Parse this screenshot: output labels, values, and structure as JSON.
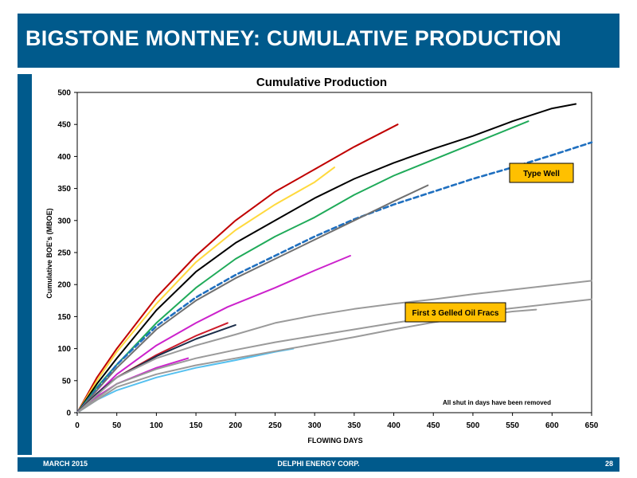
{
  "slide": {
    "title": "BIGSTONE MONTNEY:  CUMULATIVE PRODUCTION",
    "footer_left": "MARCH 2015",
    "footer_center": "DELPHI ENERGY CORP.",
    "page_number": "28",
    "accent_color": "#005a8c"
  },
  "chart_data": {
    "type": "line",
    "title": "Cumulative Production",
    "xlabel": "FLOWING DAYS",
    "ylabel": "Cumulative BOE's (MBOE)",
    "xlim": [
      0,
      650
    ],
    "ylim": [
      0,
      500
    ],
    "xticks": [
      0,
      50,
      100,
      150,
      200,
      250,
      300,
      350,
      400,
      450,
      500,
      550,
      600,
      650
    ],
    "yticks": [
      0,
      50,
      100,
      150,
      200,
      250,
      300,
      350,
      400,
      450,
      500
    ],
    "grid": false,
    "legend": "none",
    "annotations": {
      "type_well_label": "Type Well",
      "gelled_label": "First 3 Gelled Oil Fracs",
      "note": "All shut in days have been removed",
      "callout_fill": "#ffc000"
    },
    "series": [
      {
        "color": "#c00000",
        "dashed": false,
        "x": [
          0,
          25,
          50,
          100,
          150,
          200,
          250,
          300,
          350,
          405
        ],
        "y": [
          0,
          55,
          100,
          180,
          245,
          300,
          345,
          380,
          415,
          450
        ]
      },
      {
        "color": "#ffd93d",
        "dashed": false,
        "x": [
          0,
          25,
          50,
          100,
          150,
          200,
          250,
          300,
          325
        ],
        "y": [
          0,
          50,
          95,
          170,
          235,
          285,
          325,
          360,
          383
        ]
      },
      {
        "color": "#000000",
        "dashed": false,
        "x": [
          0,
          25,
          50,
          100,
          150,
          200,
          250,
          300,
          350,
          400,
          450,
          500,
          550,
          600,
          630
        ],
        "y": [
          0,
          45,
          85,
          160,
          220,
          265,
          300,
          335,
          365,
          390,
          412,
          432,
          455,
          475,
          482
        ]
      },
      {
        "color": "#1faa59",
        "dashed": false,
        "x": [
          0,
          25,
          50,
          100,
          150,
          200,
          250,
          300,
          350,
          400,
          450,
          500,
          550,
          570
        ],
        "y": [
          0,
          40,
          75,
          140,
          195,
          240,
          275,
          305,
          340,
          370,
          395,
          420,
          445,
          455
        ]
      },
      {
        "color": "#1f6fbf",
        "dashed": true,
        "x": [
          0,
          50,
          100,
          150,
          200,
          250,
          300,
          350,
          400,
          450,
          500,
          550,
          600,
          650
        ],
        "y": [
          0,
          75,
          135,
          180,
          215,
          245,
          275,
          302,
          325,
          345,
          365,
          383,
          402,
          422
        ]
      },
      {
        "color": "#707070",
        "dashed": false,
        "x": [
          0,
          50,
          100,
          150,
          200,
          250,
          300,
          350,
          400,
          443
        ],
        "y": [
          0,
          70,
          130,
          175,
          210,
          240,
          270,
          300,
          330,
          355
        ]
      },
      {
        "color": "#cc22cc",
        "dashed": false,
        "x": [
          0,
          25,
          50,
          100,
          150,
          190,
          220,
          250,
          300,
          345
        ],
        "y": [
          0,
          30,
          60,
          105,
          140,
          165,
          180,
          195,
          222,
          245
        ]
      },
      {
        "color": "#cc1a2a",
        "dashed": false,
        "x": [
          0,
          25,
          50,
          100,
          150,
          190
        ],
        "y": [
          0,
          30,
          55,
          90,
          120,
          140
        ]
      },
      {
        "color": "#1c2e4a",
        "dashed": false,
        "x": [
          0,
          25,
          50,
          100,
          150,
          200
        ],
        "y": [
          0,
          30,
          55,
          88,
          115,
          137
        ]
      },
      {
        "color": "#cc22cc",
        "dashed": false,
        "x": [
          0,
          25,
          50,
          100,
          140
        ],
        "y": [
          0,
          25,
          45,
          70,
          85
        ]
      },
      {
        "color": "#55c0ef",
        "dashed": false,
        "x": [
          0,
          25,
          50,
          100,
          150,
          200,
          250,
          273
        ],
        "y": [
          0,
          20,
          35,
          55,
          70,
          82,
          95,
          100
        ]
      },
      {
        "color": "#9a9a9a",
        "dashed": false,
        "x": [
          0,
          50,
          100,
          150,
          200,
          250,
          300,
          350,
          400,
          450,
          500,
          550,
          600,
          650
        ],
        "y": [
          0,
          55,
          85,
          105,
          122,
          140,
          152,
          162,
          170,
          177,
          185,
          192,
          199,
          206
        ]
      },
      {
        "color": "#9a9a9a",
        "dashed": false,
        "x": [
          0,
          50,
          100,
          150,
          200,
          250,
          300,
          350,
          400,
          450,
          500,
          550,
          600,
          650
        ],
        "y": [
          0,
          45,
          68,
          85,
          98,
          110,
          120,
          130,
          140,
          149,
          157,
          163,
          170,
          177
        ]
      },
      {
        "color": "#9a9a9a",
        "dashed": false,
        "x": [
          0,
          50,
          100,
          150,
          200,
          250,
          300,
          350,
          400,
          450,
          500,
          550,
          580
        ],
        "y": [
          0,
          40,
          60,
          74,
          85,
          96,
          107,
          118,
          130,
          141,
          150,
          158,
          161
        ]
      }
    ]
  }
}
